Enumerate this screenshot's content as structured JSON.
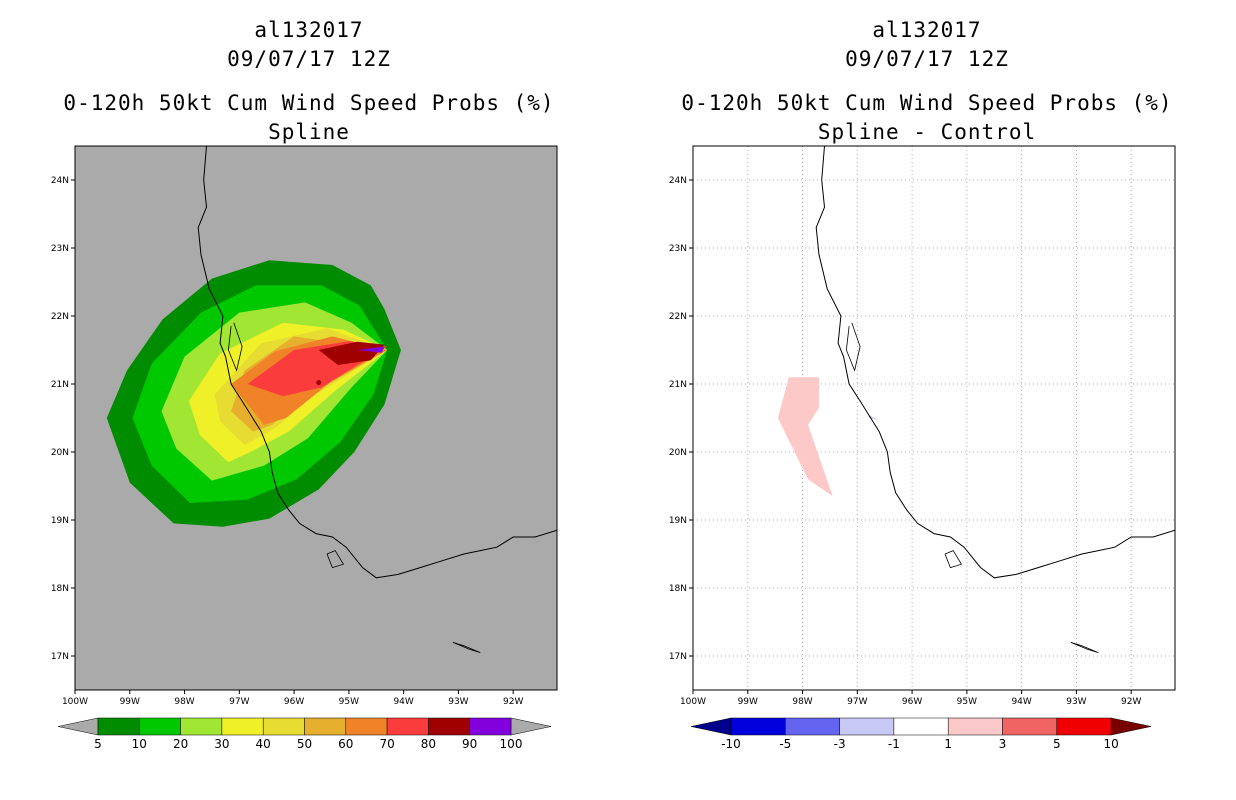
{
  "panels": [
    {
      "storm_id": "al132017",
      "datetime": "09/07/17 12Z",
      "product": "0-120h 50kt Cum Wind Speed Probs (%)",
      "subtitle": "Spline",
      "background": "#aaaaaa"
    },
    {
      "storm_id": "al132017",
      "datetime": "09/07/17 12Z",
      "product": "0-120h 50kt Cum Wind Speed Probs (%)",
      "subtitle": "Spline - Control",
      "background": "#ffffff"
    }
  ],
  "chart_data": [
    {
      "type": "contour-map",
      "title": "0-120h 50kt Cum Wind Speed Probs (%)",
      "subtitle": "Spline",
      "x_ticks": [
        "100W",
        "99W",
        "98W",
        "97W",
        "96W",
        "95W",
        "94W",
        "93W",
        "92W"
      ],
      "y_ticks": [
        "17N",
        "18N",
        "19N",
        "20N",
        "21N",
        "22N",
        "23N",
        "24N"
      ],
      "xlim": [
        -100,
        -91.2
      ],
      "ylim": [
        16.5,
        24.5
      ],
      "grid": false,
      "colorbar": {
        "labels": [
          "5",
          "10",
          "20",
          "30",
          "40",
          "50",
          "60",
          "70",
          "80",
          "90",
          "100"
        ],
        "colors": [
          "#008c00",
          "#00c800",
          "#a0e632",
          "#f0f028",
          "#e6dc32",
          "#e6af2d",
          "#f08228",
          "#fa3c3c",
          "#a00000",
          "#8200dc"
        ]
      },
      "contours": [
        {
          "level": 5,
          "color": "#008c00",
          "lonlat": [
            [
              -98.2,
              18.95
            ],
            [
              -99.0,
              19.55
            ],
            [
              -99.42,
              20.5
            ],
            [
              -99.05,
              21.2
            ],
            [
              -98.4,
              21.95
            ],
            [
              -97.5,
              22.55
            ],
            [
              -96.45,
              22.82
            ],
            [
              -95.3,
              22.75
            ],
            [
              -94.6,
              22.45
            ],
            [
              -94.35,
              22.1
            ],
            [
              -94.05,
              21.5
            ],
            [
              -94.35,
              20.7
            ],
            [
              -94.9,
              20.0
            ],
            [
              -95.55,
              19.45
            ],
            [
              -96.45,
              19.02
            ],
            [
              -97.3,
              18.9
            ]
          ]
        },
        {
          "level": 10,
          "color": "#00c800",
          "lonlat": [
            [
              -97.9,
              19.25
            ],
            [
              -98.6,
              19.8
            ],
            [
              -98.95,
              20.5
            ],
            [
              -98.6,
              21.3
            ],
            [
              -97.7,
              22.05
            ],
            [
              -96.7,
              22.45
            ],
            [
              -95.5,
              22.45
            ],
            [
              -94.8,
              22.15
            ],
            [
              -94.3,
              21.5
            ],
            [
              -94.55,
              20.85
            ],
            [
              -95.15,
              20.15
            ],
            [
              -95.95,
              19.6
            ],
            [
              -96.85,
              19.3
            ]
          ]
        },
        {
          "level": 20,
          "color": "#a0e632",
          "lonlat": [
            [
              -97.5,
              19.58
            ],
            [
              -98.15,
              20.05
            ],
            [
              -98.42,
              20.6
            ],
            [
              -98.0,
              21.4
            ],
            [
              -97.0,
              22.05
            ],
            [
              -95.8,
              22.2
            ],
            [
              -94.95,
              21.9
            ],
            [
              -94.3,
              21.5
            ],
            [
              -94.95,
              20.95
            ],
            [
              -95.75,
              20.2
            ],
            [
              -96.55,
              19.8
            ]
          ]
        },
        {
          "level": 30,
          "color": "#f0f028",
          "lonlat": [
            [
              -97.2,
              19.85
            ],
            [
              -97.72,
              20.25
            ],
            [
              -97.92,
              20.75
            ],
            [
              -97.35,
              21.45
            ],
            [
              -96.2,
              21.9
            ],
            [
              -95.1,
              21.8
            ],
            [
              -94.3,
              21.5
            ],
            [
              -95.25,
              20.9
            ],
            [
              -96.1,
              20.3
            ],
            [
              -96.8,
              20.0
            ]
          ]
        },
        {
          "level": 40,
          "color": "#e6dc32",
          "lonlat": [
            [
              -96.9,
              20.1
            ],
            [
              -97.35,
              20.45
            ],
            [
              -97.45,
              20.85
            ],
            [
              -96.6,
              21.6
            ],
            [
              -95.4,
              21.82
            ],
            [
              -94.3,
              21.5
            ],
            [
              -95.6,
              20.85
            ],
            [
              -96.35,
              20.35
            ]
          ]
        },
        {
          "level": 50,
          "color": "#e6af2d",
          "lonlat": [
            [
              -96.75,
              20.3
            ],
            [
              -97.15,
              20.6
            ],
            [
              -96.9,
              21.2
            ],
            [
              -96.0,
              21.7
            ],
            [
              -94.3,
              21.5
            ],
            [
              -95.9,
              20.75
            ],
            [
              -96.4,
              20.4
            ]
          ]
        },
        {
          "level": 60,
          "color": "#f08228",
          "lonlat": [
            [
              -96.55,
              20.4
            ],
            [
              -97.15,
              21.0
            ],
            [
              -96.35,
              21.48
            ],
            [
              -95.3,
              21.7
            ],
            [
              -94.3,
              21.5
            ],
            [
              -95.3,
              21.05
            ],
            [
              -96.15,
              20.5
            ]
          ]
        },
        {
          "level": 70,
          "color": "#fa3c3c",
          "lonlat": [
            [
              -96.2,
              20.82
            ],
            [
              -96.85,
              21.0
            ],
            [
              -96.0,
              21.5
            ],
            [
              -95.0,
              21.63
            ],
            [
              -94.3,
              21.55
            ],
            [
              -95.5,
              20.95
            ]
          ]
        },
        {
          "level": 80,
          "color": "#a00000",
          "lonlat": [
            [
              -95.2,
              21.28
            ],
            [
              -95.55,
              21.5
            ],
            [
              -94.85,
              21.62
            ],
            [
              -94.35,
              21.58
            ],
            [
              -94.6,
              21.35
            ]
          ]
        },
        {
          "level": 90,
          "color": "#8200dc",
          "lonlat": [
            [
              -94.85,
              21.5
            ],
            [
              -94.35,
              21.55
            ],
            [
              -94.4,
              21.46
            ]
          ]
        }
      ],
      "spots": [
        {
          "lonlat": [
            -95.55,
            21.02
          ],
          "color": "#a00000"
        }
      ]
    },
    {
      "type": "contour-map",
      "title": "0-120h 50kt Cum Wind Speed Probs (%)",
      "subtitle": "Spline - Control",
      "x_ticks": [
        "100W",
        "99W",
        "98W",
        "97W",
        "96W",
        "95W",
        "94W",
        "93W",
        "92W"
      ],
      "y_ticks": [
        "17N",
        "18N",
        "19N",
        "20N",
        "21N",
        "22N",
        "23N",
        "24N"
      ],
      "xlim": [
        -100,
        -91.2
      ],
      "ylim": [
        16.5,
        24.5
      ],
      "grid": true,
      "colorbar": {
        "labels": [
          "-10",
          "-5",
          "-3",
          "-1",
          "1",
          "3",
          "5",
          "10"
        ],
        "colors": [
          "#0000dc",
          "#6464f0",
          "#c8c8f5",
          "#ffffff",
          "#fac8c8",
          "#f06464",
          "#f00000"
        ],
        "end_colors": [
          "#00008c",
          "#780000"
        ]
      },
      "contours": [
        {
          "level": 1,
          "color": "#fcc8c8",
          "lonlat": [
            [
              -98.25,
              21.1
            ],
            [
              -97.7,
              21.1
            ],
            [
              -97.7,
              20.65
            ],
            [
              -97.9,
              20.4
            ],
            [
              -97.45,
              19.35
            ],
            [
              -97.9,
              19.6
            ],
            [
              -98.45,
              20.5
            ]
          ]
        },
        {
          "level": -1,
          "color": "#c8c8f5",
          "lonlat": [
            [
              -96.8,
              20.55
            ],
            [
              -96.62,
              20.47
            ],
            [
              -96.78,
              20.5
            ]
          ]
        }
      ]
    }
  ]
}
